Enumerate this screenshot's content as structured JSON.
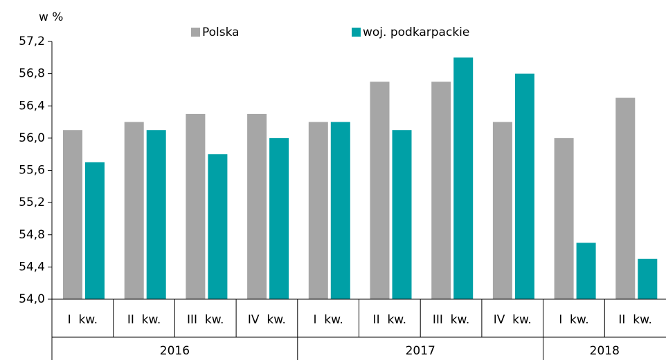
{
  "chart_data": {
    "type": "bar",
    "y_label": "w %",
    "categories": [
      "I  kw.",
      "II  kw.",
      "III  kw.",
      "IV  kw.",
      "I  kw.",
      "II  kw.",
      "III  kw.",
      "IV  kw.",
      "I  kw.",
      "II  kw."
    ],
    "groups": [
      {
        "label": "2016",
        "span": 4
      },
      {
        "label": "2017",
        "span": 4
      },
      {
        "label": "2018",
        "span": 2
      }
    ],
    "series": [
      {
        "name": "Polska",
        "color": "#a6a6a6",
        "values": [
          56.1,
          56.2,
          56.3,
          56.3,
          56.2,
          56.7,
          56.7,
          56.2,
          56.0,
          56.5
        ]
      },
      {
        "name": "woj. podkarpackie",
        "color": "#00a0a6",
        "values": [
          55.7,
          56.1,
          55.8,
          56.0,
          56.2,
          56.1,
          57.0,
          56.8,
          54.7,
          54.5
        ]
      }
    ],
    "ylim": [
      54.0,
      57.2
    ],
    "yticks": [
      {
        "value": 54.0,
        "label": "54,0"
      },
      {
        "value": 54.4,
        "label": "54,4"
      },
      {
        "value": 54.8,
        "label": "54,8"
      },
      {
        "value": 55.2,
        "label": "55,2"
      },
      {
        "value": 55.6,
        "label": "55,6"
      },
      {
        "value": 56.0,
        "label": "56,0"
      },
      {
        "value": 56.4,
        "label": "56,4"
      },
      {
        "value": 56.8,
        "label": "56,8"
      },
      {
        "value": 57.2,
        "label": "57,2"
      }
    ],
    "grid": false,
    "legend": "top"
  }
}
